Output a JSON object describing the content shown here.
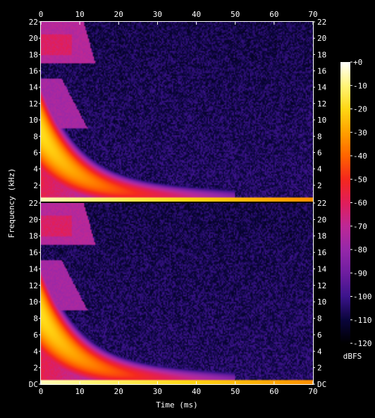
{
  "chart_data": {
    "type": "heatmap",
    "title": "",
    "xlabel": "Time (ms)",
    "ylabel": "Frequency (kHz)",
    "xlim": [
      0,
      70
    ],
    "ylim": [
      0,
      22
    ],
    "x_ticks": [
      "0",
      "10",
      "20",
      "30",
      "40",
      "50",
      "60",
      "70"
    ],
    "x_tick_values": [
      0,
      10,
      20,
      30,
      40,
      50,
      60,
      70
    ],
    "y_ticks_top": [
      "22",
      "20",
      "18",
      "16",
      "14",
      "12",
      "10",
      "8",
      "6",
      "4",
      "2"
    ],
    "y_ticks_bottom": [
      "22",
      "20",
      "18",
      "16",
      "14",
      "12",
      "10",
      "8",
      "6",
      "4",
      "2",
      "DC"
    ],
    "y_tick_values": [
      22,
      20,
      18,
      16,
      14,
      12,
      10,
      8,
      6,
      4,
      2,
      0
    ],
    "channels": [
      "top",
      "bottom"
    ],
    "grid": false,
    "colorbar": {
      "label": "dBFS",
      "ticks": [
        "+0",
        "-10",
        "-20",
        "-30",
        "-40",
        "-50",
        "-60",
        "-70",
        "-80",
        "-90",
        "-100",
        "-110",
        "-120"
      ],
      "tick_values": [
        0,
        -10,
        -20,
        -30,
        -40,
        -50,
        -60,
        -70,
        -80,
        -90,
        -100,
        -110,
        -120
      ],
      "range": [
        -120,
        0
      ]
    },
    "features": {
      "noise_floor_db": -105,
      "sweep_decay_ms": 30,
      "dc_line_db": -5,
      "high_band_khz": [
        17,
        22
      ],
      "high_band_end_ms": 12,
      "mid_band_khz": [
        9,
        15
      ],
      "mid_band_end_ms": 7
    }
  }
}
